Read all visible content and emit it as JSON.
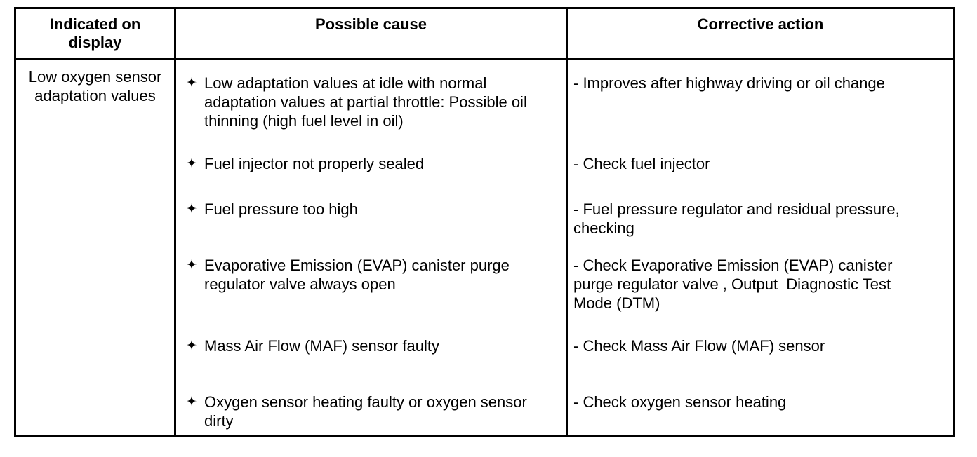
{
  "table": {
    "bullet_glyph": "✦",
    "colors": {
      "border": "#000000",
      "text": "#000000",
      "background": "#ffffff"
    },
    "headers": [
      {
        "label": "Indicated on\ndisplay"
      },
      {
        "label": "Possible cause"
      },
      {
        "label": "Corrective action"
      }
    ],
    "indicated_on_display": "Low oxygen sensor\nadaptation values",
    "items": [
      {
        "cause": "Low adaptation values at idle with normal\nadaptation values at partial throttle: Possible oil\nthinning (high fuel level in oil)",
        "action": "- Improves after highway driving or oil change"
      },
      {
        "cause": "Fuel injector not properly sealed",
        "action": "- Check fuel injector"
      },
      {
        "cause": "Fuel pressure too high",
        "action": "- Fuel pressure regulator and residual pressure,\nchecking"
      },
      {
        "cause": "Evaporative Emission (EVAP) canister purge\nregulator valve always open",
        "action": "- Check Evaporative Emission (EVAP) canister\npurge regulator valve , Output  Diagnostic Test\nMode (DTM)"
      },
      {
        "cause": "Mass Air Flow (MAF) sensor faulty",
        "action": "- Check Mass Air Flow (MAF) sensor"
      },
      {
        "cause": "Oxygen sensor heating faulty or oxygen sensor\ndirty",
        "action": "- Check oxygen sensor heating"
      }
    ]
  }
}
